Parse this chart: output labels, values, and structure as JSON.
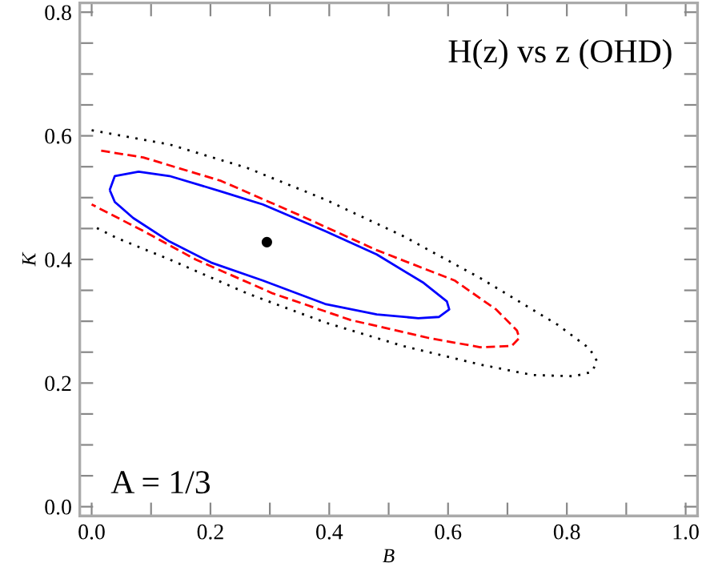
{
  "chart_data": {
    "type": "line",
    "xlabel": "B",
    "ylabel": "K",
    "annotations": [
      "H(z) vs z (OHD)",
      "A = 1/3"
    ],
    "xlim": [
      -0.02,
      1.02
    ],
    "ylim": [
      -0.015,
      0.815
    ],
    "xticks": [
      {
        "value": 0,
        "label": "0.0"
      },
      {
        "value": 0.1,
        "label": null
      },
      {
        "value": 0.2,
        "label": "0.2"
      },
      {
        "value": 0.3,
        "label": null
      },
      {
        "value": 0.4,
        "label": "0.4"
      },
      {
        "value": 0.5,
        "label": null
      },
      {
        "value": 0.6,
        "label": "0.6"
      },
      {
        "value": 0.7,
        "label": null
      },
      {
        "value": 0.8,
        "label": "0.8"
      },
      {
        "value": 0.9,
        "label": null
      },
      {
        "value": 1,
        "label": "1.0"
      }
    ],
    "yticks": [
      {
        "value": 0,
        "label": "0.0"
      },
      {
        "value": 0.05,
        "label": null
      },
      {
        "value": 0.1,
        "label": null
      },
      {
        "value": 0.15,
        "label": null
      },
      {
        "value": 0.2,
        "label": "0.2"
      },
      {
        "value": 0.25,
        "label": null
      },
      {
        "value": 0.3,
        "label": null
      },
      {
        "value": 0.35,
        "label": null
      },
      {
        "value": 0.4,
        "label": "0.4"
      },
      {
        "value": 0.45,
        "label": null
      },
      {
        "value": 0.5,
        "label": null
      },
      {
        "value": 0.55,
        "label": null
      },
      {
        "value": 0.6,
        "label": "0.6"
      },
      {
        "value": 0.65,
        "label": null
      },
      {
        "value": 0.7,
        "label": null
      },
      {
        "value": 0.75,
        "label": null
      },
      {
        "value": 0.8,
        "label": "0.8"
      }
    ],
    "grid": false,
    "legend": false,
    "series": [
      {
        "line_style": "dotted",
        "color": "#000000",
        "x": [
          0.0,
          0.131,
          0.262,
          0.393,
          0.524,
          0.654,
          0.785,
          0.838,
          0.851,
          0.842,
          0.812,
          0.742,
          0.654,
          0.524,
          0.393,
          0.262,
          0.131,
          0.044,
          0.004
        ],
        "values": [
          0.609,
          0.586,
          0.548,
          0.497,
          0.438,
          0.37,
          0.294,
          0.256,
          0.235,
          0.218,
          0.211,
          0.213,
          0.23,
          0.26,
          0.298,
          0.345,
          0.4,
          0.434,
          0.453
        ]
      },
      {
        "line_style": "dashed",
        "color": "#ff0000",
        "x": [
          0.016,
          0.087,
          0.218,
          0.349,
          0.48,
          0.611,
          0.681,
          0.716,
          0.72,
          0.707,
          0.654,
          0.567,
          0.436,
          0.305,
          0.175,
          0.087,
          0.0
        ],
        "values": [
          0.576,
          0.565,
          0.527,
          0.472,
          0.415,
          0.366,
          0.319,
          0.285,
          0.273,
          0.26,
          0.258,
          0.273,
          0.302,
          0.345,
          0.4,
          0.446,
          0.489
        ]
      },
      {
        "line_style": "solid",
        "color": "#0000ff",
        "x": [
          0.031,
          0.039,
          0.079,
          0.131,
          0.218,
          0.288,
          0.393,
          0.48,
          0.559,
          0.598,
          0.602,
          0.585,
          0.55,
          0.48,
          0.393,
          0.288,
          0.201,
          0.131,
          0.07,
          0.039,
          0.031
        ],
        "values": [
          0.514,
          0.535,
          0.542,
          0.535,
          0.51,
          0.489,
          0.446,
          0.408,
          0.362,
          0.332,
          0.319,
          0.307,
          0.305,
          0.311,
          0.328,
          0.366,
          0.395,
          0.429,
          0.467,
          0.493,
          0.511
        ]
      },
      {
        "type": "scatter",
        "marker": "circle",
        "color": "#000000",
        "x": [
          0.295
        ],
        "values": [
          0.428
        ]
      }
    ]
  }
}
